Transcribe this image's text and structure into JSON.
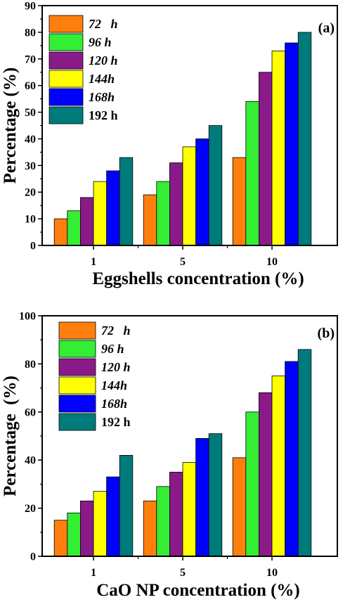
{
  "chart_data": [
    {
      "type": "bar",
      "panel_label": "(a)",
      "categories": [
        "1",
        "5",
        "10"
      ],
      "xlabel": "Eggshells concentration (%)",
      "ylabel": "Percentage (%)",
      "ylim": [
        0,
        90
      ],
      "yticks": [
        0,
        10,
        20,
        30,
        40,
        50,
        60,
        70,
        80,
        90
      ],
      "legend_position": "top-left",
      "series": [
        {
          "name": "72   h",
          "italic": true,
          "color": "#ff7f0e",
          "values": [
            10,
            19,
            33
          ]
        },
        {
          "name": "96 h",
          "italic": true,
          "color": "#33ee33",
          "values": [
            13,
            24,
            54
          ]
        },
        {
          "name": "120 h",
          "italic": true,
          "color": "#8b1a89",
          "values": [
            18,
            31,
            65
          ]
        },
        {
          "name": "144h",
          "italic": true,
          "color": "#ffff00",
          "values": [
            24,
            37,
            73
          ]
        },
        {
          "name": "168h",
          "italic": true,
          "color": "#0000ff",
          "values": [
            28,
            40,
            76
          ]
        },
        {
          "name": "192 h",
          "italic": false,
          "color": "#007b7b",
          "values": [
            33,
            45,
            80
          ]
        }
      ]
    },
    {
      "type": "bar",
      "panel_label": "(b)",
      "categories": [
        "1",
        "5",
        "10"
      ],
      "xlabel": "CaO NP concentration (%)",
      "ylabel": "Percentage  (%)",
      "ylim": [
        0,
        100
      ],
      "yticks": [
        0,
        20,
        40,
        60,
        80,
        100
      ],
      "legend_position": "top-left",
      "series": [
        {
          "name": "72   h",
          "italic": true,
          "color": "#ff7f0e",
          "values": [
            15,
            23,
            41
          ]
        },
        {
          "name": "96 h",
          "italic": true,
          "color": "#33ee33",
          "values": [
            18,
            29,
            60
          ]
        },
        {
          "name": "120 h",
          "italic": true,
          "color": "#8b1a89",
          "values": [
            23,
            35,
            68
          ]
        },
        {
          "name": "144h",
          "italic": true,
          "color": "#ffff00",
          "values": [
            27,
            39,
            75
          ]
        },
        {
          "name": "168h",
          "italic": true,
          "color": "#0000ff",
          "values": [
            33,
            49,
            81
          ]
        },
        {
          "name": "192 h",
          "italic": false,
          "color": "#007b7b",
          "values": [
            42,
            51,
            86
          ]
        }
      ]
    }
  ]
}
